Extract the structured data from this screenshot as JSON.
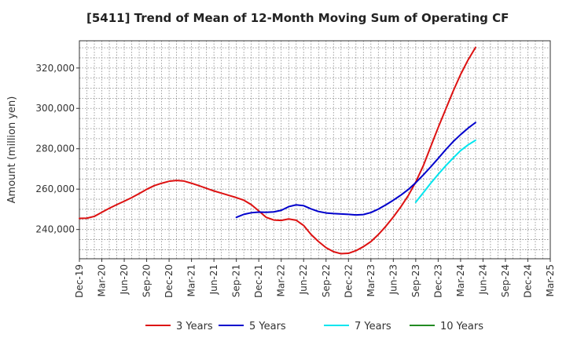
{
  "chart_data": {
    "type": "line",
    "title": "[5411]  Trend of Mean of 12-Month Moving Sum of Operating CF",
    "xlabel": "",
    "ylabel": "Amount (million yen)",
    "ylim": [
      225500,
      333500
    ],
    "yticks": [
      240000,
      260000,
      280000,
      300000,
      320000
    ],
    "ytick_labels": [
      "240,000",
      "260,000",
      "280,000",
      "300,000",
      "320,000"
    ],
    "x_start": "Dec-19",
    "x_months": 63,
    "xtick_labels": [
      "Dec-19",
      "Mar-20",
      "Jun-20",
      "Sep-20",
      "Dec-20",
      "Mar-21",
      "Jun-21",
      "Sep-21",
      "Dec-21",
      "Mar-22",
      "Jun-22",
      "Sep-22",
      "Dec-22",
      "Mar-23",
      "Jun-23",
      "Sep-23",
      "Dec-23",
      "Mar-24",
      "Jun-24",
      "Sep-24",
      "Dec-24",
      "Mar-25"
    ],
    "grid": true,
    "legend_position": "bottom",
    "series": [
      {
        "name": "3 Years",
        "color": "#dd1111",
        "start_index": 0,
        "values": [
          245500,
          245600,
          246500,
          248500,
          250500,
          252300,
          254000,
          255800,
          257800,
          259900,
          261700,
          262900,
          263900,
          264300,
          264000,
          262900,
          261700,
          260400,
          259100,
          258000,
          256900,
          255800,
          254500,
          252300,
          249200,
          246000,
          244700,
          244500,
          245200,
          244600,
          242000,
          237500,
          234000,
          231000,
          229000,
          228000,
          228200,
          229500,
          231500,
          234000,
          237500,
          241600,
          246200,
          251200,
          256800,
          263500,
          271500,
          281000,
          290500,
          299500,
          308500,
          316800,
          324000,
          330200
        ]
      },
      {
        "name": "5 Years",
        "color": "#0000cc",
        "start_index": 21,
        "values": [
          246000,
          247500,
          248300,
          248600,
          248500,
          248700,
          249500,
          251300,
          252200,
          251800,
          250200,
          248900,
          248200,
          247900,
          247700,
          247500,
          247200,
          247400,
          248400,
          250100,
          252200,
          254500,
          257000,
          259800,
          263200,
          267000,
          271000,
          275200,
          279500,
          283500,
          287000,
          290200,
          293000
        ]
      },
      {
        "name": "7 Years",
        "color": "#00e5ee",
        "start_index": 45,
        "values": [
          253500,
          258200,
          262900,
          267300,
          271500,
          275400,
          279100,
          281900,
          284200
        ]
      },
      {
        "name": "10 Years",
        "color": "#228b22",
        "start_index": null,
        "values": []
      }
    ]
  }
}
